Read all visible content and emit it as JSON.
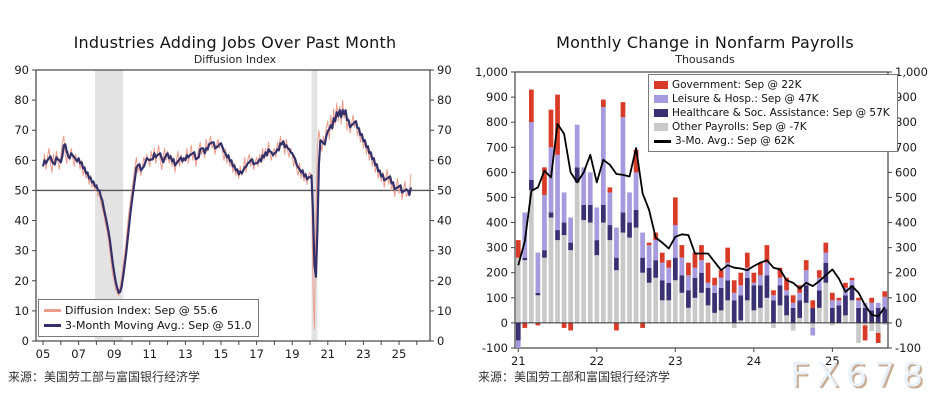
{
  "watermark": "FX678",
  "charts": [
    {
      "title": "Industries Adding Jobs Over Past Month",
      "subtitle": "Diffusion Index",
      "source": "来源：美国劳工部与富国银行经济学",
      "chart_data": {
        "type": "line",
        "x_unit": "monthly, Jan 2005 - Sep 2025",
        "x_axis_range": [
          2004.6,
          2026.7
        ],
        "x_tick_years": [
          2005,
          2006,
          2007,
          2008,
          2009,
          2010,
          2011,
          2012,
          2013,
          2014,
          2015,
          2016,
          2017,
          2018,
          2019,
          2020,
          2021,
          2022,
          2023,
          2024,
          2025,
          2026
        ],
        "x_tick_labels": [
          [
            "2005",
            "05"
          ],
          [
            "2007",
            "07"
          ],
          [
            "2009",
            "09"
          ],
          [
            "2011",
            "11"
          ],
          [
            "2013",
            "13"
          ],
          [
            "2015",
            "15"
          ],
          [
            "2017",
            "17"
          ],
          [
            "2019",
            "19"
          ],
          [
            "2021",
            "21"
          ],
          [
            "2023",
            "23"
          ],
          [
            "2025",
            "25"
          ]
        ],
        "ylim": [
          0,
          90
        ],
        "y_ticks": [
          0,
          10,
          20,
          30,
          40,
          50,
          60,
          70,
          80,
          90
        ],
        "reference_line": 50,
        "recession_bands": [
          [
            2007.92,
            2009.5
          ],
          [
            2020.08,
            2020.42
          ]
        ],
        "band_color": "#e3e3e3",
        "series": [
          {
            "name": "Diffusion Index: Sep @ 55.6",
            "color": "#ed9c8c",
            "width": 1,
            "start_year": 2005,
            "monthly_values": [
              58,
              62,
              57,
              61,
              64,
              59,
              56,
              62,
              58,
              63,
              60,
              57,
              61,
              66,
              68,
              62,
              59,
              63,
              60,
              64,
              61,
              58,
              62,
              59,
              61,
              57,
              60,
              55,
              58,
              54,
              56,
              52,
              55,
              51,
              53,
              50,
              52,
              48,
              50,
              46,
              44,
              42,
              39,
              37,
              34,
              30,
              26,
              22,
              20,
              17,
              16,
              15,
              18,
              21,
              25,
              29,
              33,
              38,
              43,
              47,
              50,
              54,
              58,
              61,
              56,
              59,
              55,
              58,
              61,
              59,
              62,
              60,
              58,
              63,
              60,
              64,
              59,
              62,
              65,
              60,
              57,
              61,
              64,
              60,
              63,
              59,
              62,
              58,
              61,
              56,
              60,
              63,
              58,
              62,
              59,
              61,
              60,
              64,
              59,
              62,
              65,
              60,
              63,
              58,
              61,
              64,
              66,
              62,
              64,
              61,
              67,
              63,
              66,
              68,
              64,
              66,
              62,
              65,
              67,
              64,
              66,
              63,
              60,
              64,
              59,
              62,
              58,
              60,
              56,
              59,
              55,
              57,
              54,
              58,
              55,
              57,
              61,
              56,
              60,
              62,
              58,
              61,
              57,
              59,
              61,
              58,
              62,
              59,
              64,
              60,
              64,
              61,
              66,
              62,
              60,
              63,
              64,
              61,
              66,
              63,
              68,
              65,
              66,
              62,
              67,
              63,
              61,
              64,
              62,
              58,
              61,
              57,
              55,
              59,
              54,
              57,
              53,
              56,
              52,
              55,
              56,
              54,
              18,
              4,
              42,
              64,
              70,
              66,
              63,
              68,
              65,
              71,
              73,
              67,
              75,
              70,
              77,
              72,
              79,
              73,
              78,
              72,
              80,
              74,
              76,
              70,
              74,
              69,
              72,
              75,
              71,
              73,
              68,
              71,
              66,
              69,
              64,
              67,
              62,
              65,
              60,
              63,
              58,
              61,
              56,
              59,
              54,
              57,
              53,
              56,
              51,
              54,
              57,
              52,
              55,
              50,
              53,
              48,
              51,
              54,
              49,
              52,
              47,
              50,
              53,
              48,
              49,
              48.4,
              55.6
            ],
            "latest": {
              "month": "Sep",
              "value": 55.6
            }
          },
          {
            "name": "3-Month Moving Avg.: Sep @ 51.0",
            "color": "#343069",
            "width": 2.2,
            "derived": "3_month_moving_average_of_series_0",
            "latest": {
              "month": "Sep",
              "value": 51.0
            }
          }
        ]
      }
    },
    {
      "title": "Monthly Change in Nonfarm Payrolls",
      "subtitle": "Thousands",
      "source": "来源：美国劳工部和富国银行经济学",
      "chart_data": {
        "type": "stacked_bar",
        "x_unit": "monthly, Jan 2021 - Sep 2025",
        "x_tick_labels": [
          "21",
          "22",
          "23",
          "24",
          "25"
        ],
        "ylim": [
          -100,
          1000
        ],
        "y_ticks": [
          -100,
          0,
          100,
          200,
          300,
          400,
          500,
          600,
          700,
          800,
          900,
          1000
        ],
        "y_tick_labels": [
          "-100",
          "0",
          "100",
          "200",
          "300",
          "400",
          "500",
          "600",
          "700",
          "800",
          "900",
          "1,000"
        ],
        "stack_order_bottom_to_top": [
          3,
          2,
          1,
          0
        ],
        "series": [
          {
            "name": "Government: Sep @ 22K",
            "color": "#d93b28",
            "values": [
              70,
              -20,
              130,
              -10,
              110,
              150,
              240,
              -20,
              -30,
              0,
              0,
              0,
              0,
              30,
              20,
              -30,
              60,
              0,
              90,
              -20,
              10,
              30,
              40,
              30,
              110,
              50,
              50,
              60,
              60,
              80,
              30,
              30,
              60,
              50,
              50,
              60,
              40,
              50,
              70,
              20,
              40,
              50,
              30,
              30,
              40,
              30,
              30,
              40,
              30,
              10,
              20,
              10,
              10,
              -60,
              20,
              -40,
              22
            ],
            "latest": {
              "month": "Sep",
              "value": "22K"
            }
          },
          {
            "name": "Leisure & Hosp.: Sep @ 47K",
            "color": "#a79ade",
            "values": [
              -30,
              180,
              230,
              160,
              220,
              260,
              300,
              120,
              100,
              170,
              150,
              130,
              130,
              390,
              130,
              120,
              380,
              120,
              150,
              100,
              90,
              80,
              70,
              60,
              130,
              70,
              60,
              40,
              50,
              20,
              30,
              40,
              70,
              30,
              40,
              40,
              10,
              40,
              50,
              20,
              30,
              20,
              20,
              30,
              60,
              -30,
              50,
              40,
              30,
              20,
              30,
              20,
              30,
              20,
              30,
              20,
              47
            ],
            "latest": {
              "month": "Sep",
              "value": "47K"
            }
          },
          {
            "name": "Healthcare & Soc. Assistance: Sep @ 57K",
            "color": "#3a3173",
            "values": [
              -70,
              10,
              40,
              10,
              30,
              20,
              40,
              50,
              30,
              60,
              60,
              70,
              60,
              70,
              60,
              50,
              80,
              60,
              70,
              60,
              60,
              70,
              80,
              70,
              90,
              70,
              70,
              80,
              80,
              70,
              80,
              90,
              80,
              90,
              100,
              90,
              100,
              90,
              90,
              90,
              80,
              80,
              60,
              70,
              70,
              60,
              70,
              80,
              60,
              70,
              80,
              60,
              60,
              60,
              50,
              60,
              57
            ],
            "latest": {
              "month": "Sep",
              "value": "57K"
            }
          },
          {
            "name": "Other Payrolls: Sep @ -7K",
            "color": "#c9c9c9",
            "values": [
              260,
              250,
              530,
              110,
              260,
              420,
              330,
              350,
              290,
              560,
              410,
              400,
              270,
              400,
              330,
              210,
              360,
              340,
              380,
              200,
              160,
              180,
              90,
              90,
              170,
              120,
              60,
              100,
              120,
              70,
              40,
              50,
              90,
              -20,
              10,
              90,
              50,
              60,
              100,
              -20,
              70,
              30,
              -30,
              20,
              80,
              -20,
              60,
              160,
              -10,
              0,
              30,
              90,
              -80,
              -10,
              -32,
              -40,
              -7
            ],
            "latest": {
              "month": "Sep",
              "value": "-7K"
            }
          },
          {
            "name": "3-Mo. Avg.: Sep @ 62K",
            "color": "#000000",
            "type": "line",
            "derived": "3_month_moving_average_of_stack_totals",
            "latest": {
              "month": "Sep",
              "value": "62K"
            }
          }
        ]
      }
    }
  ]
}
